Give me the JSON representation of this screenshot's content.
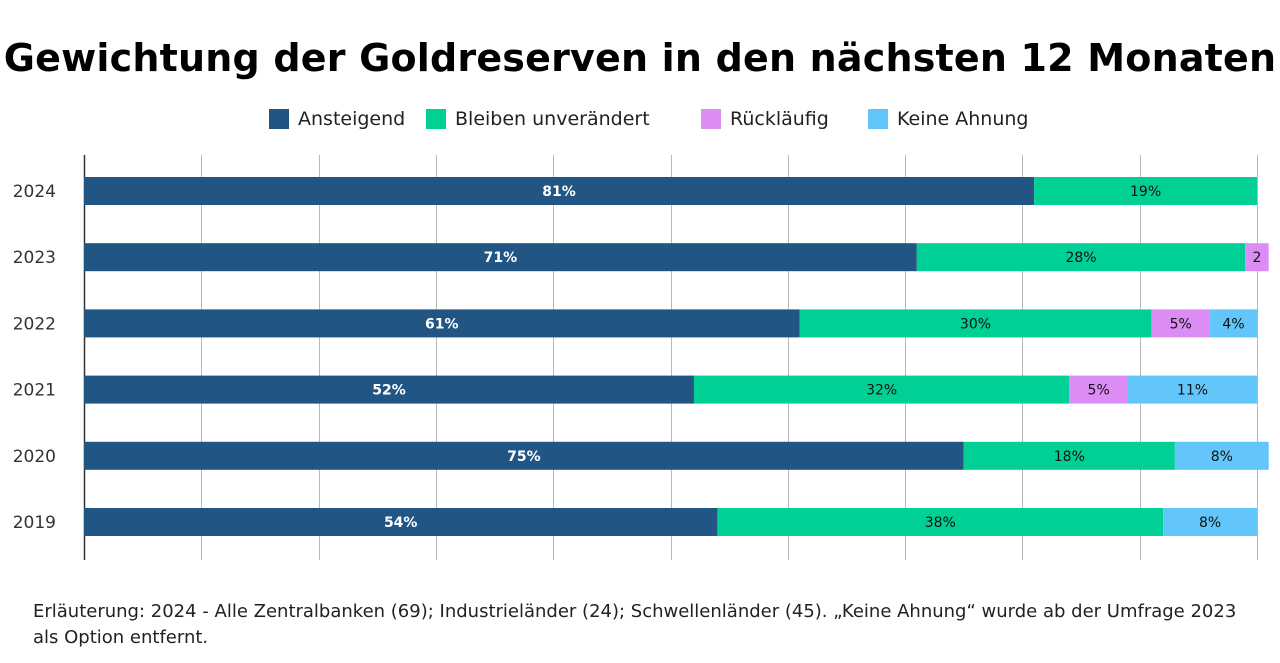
{
  "chart_data": {
    "type": "bar",
    "orientation": "horizontal",
    "stacked": true,
    "title": "Gewichtung der Goldreserven in den nächsten 12 Monaten",
    "categories": [
      "2024",
      "2023",
      "2022",
      "2021",
      "2020",
      "2019"
    ],
    "series": [
      {
        "name": "Ansteigend",
        "color": "#215584",
        "label_color": "#ffffff",
        "values": [
          81,
          71,
          61,
          52,
          75,
          54
        ],
        "labels": [
          "81%",
          "71%",
          "61%",
          "52%",
          "75%",
          "54%"
        ]
      },
      {
        "name": "Bleiben unverändert",
        "color": "#00d095",
        "label_color": "#111111",
        "values": [
          19,
          28,
          30,
          32,
          18,
          38
        ],
        "labels": [
          "19%",
          "28%",
          "30%",
          "32%",
          "18%",
          "38%"
        ]
      },
      {
        "name": "Rückläufig",
        "color": "#dc8df5",
        "label_color": "#111111",
        "values": [
          0,
          2,
          5,
          5,
          0,
          0
        ],
        "labels": [
          "",
          "2",
          "5%",
          "5%",
          "",
          ""
        ]
      },
      {
        "name": "Keine Ahnung",
        "color": "#62c6fb",
        "label_color": "#111111",
        "values": [
          0,
          0,
          4,
          11,
          8,
          8
        ],
        "labels": [
          "",
          "",
          "4%",
          "11%",
          "8%",
          "8%"
        ]
      }
    ],
    "xlim": [
      0,
      100
    ],
    "grid": true,
    "legend_position": "top"
  },
  "footnote": "Erläuterung: 2024 - Alle Zentralbanken (69); Industrieländer (24); Schwellenländer (45). „Keine Ahnung“ wurde ab der Umfrage 2023 als Option entfernt."
}
